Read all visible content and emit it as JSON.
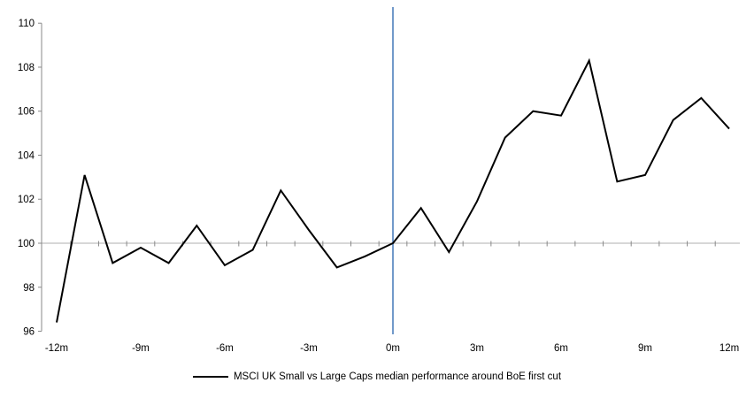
{
  "chart_data": {
    "type": "line",
    "title": "",
    "xlabel": "",
    "ylabel": "",
    "x": [
      -12,
      -11,
      -10,
      -9,
      -8,
      -7,
      -6,
      -5,
      -4,
      -3,
      -2,
      -1,
      0,
      1,
      2,
      3,
      4,
      5,
      6,
      7,
      8,
      9,
      10,
      11,
      12
    ],
    "series": [
      {
        "name": "MSCI UK Small vs Large Caps median performance around BoE first cut",
        "color": "#000000",
        "values": [
          96.4,
          103.1,
          99.1,
          99.8,
          99.1,
          100.8,
          99.0,
          99.7,
          102.4,
          100.6,
          98.9,
          99.4,
          100.0,
          101.6,
          99.6,
          101.9,
          104.8,
          106.0,
          105.8,
          108.3,
          102.8,
          103.1,
          105.6,
          106.6,
          105.2
        ]
      }
    ],
    "xlim": [
      -12,
      12
    ],
    "ylim": [
      96,
      110
    ],
    "x_ticks": [
      -12,
      -9,
      -6,
      -3,
      0,
      3,
      6,
      9,
      12
    ],
    "x_tick_labels": [
      "-12m",
      "-9m",
      "-6m",
      "-3m",
      "0m",
      "3m",
      "6m",
      "9m",
      "12m"
    ],
    "y_ticks": [
      96,
      98,
      100,
      102,
      104,
      106,
      108,
      110
    ],
    "y_tick_labels": [
      "96",
      "98",
      "100",
      "102",
      "104",
      "106",
      "108",
      "110"
    ],
    "baseline_value": 100,
    "event_line_x": 0,
    "grid": false,
    "legend_position": "bottom-center",
    "colors": {
      "series_line": "#000000",
      "event_line": "#4f81bd",
      "baseline_line": "#bfbfbf",
      "axis_line": "#898989",
      "tick": "#898989",
      "text": "#000000",
      "background": "#ffffff"
    },
    "legend": {
      "label": "MSCI UK Small vs Large Caps median performance around BoE first cut"
    }
  }
}
